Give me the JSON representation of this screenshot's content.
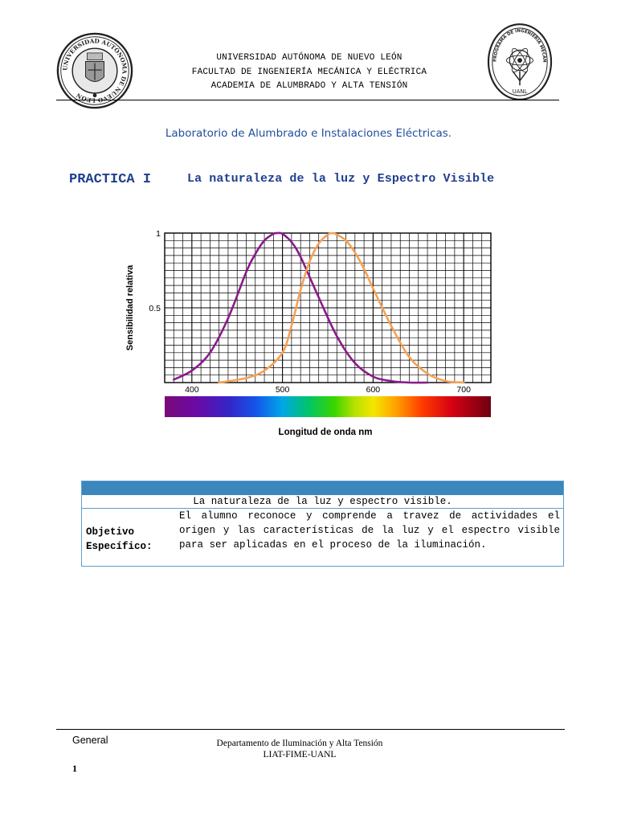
{
  "header": {
    "line1": "UNIVERSIDAD AUTÓNOMA DE NUEVO LEÓN",
    "line2": "FACULTAD DE INGENIERÍA MECÁNICA Y ELÉCTRICA",
    "line3": "ACADEMIA DE ALUMBRADO Y ALTA TENSIÓN",
    "seal_left_text": "UNIVERSIDAD AUTÓNOMA DE NUEVO LEÓN",
    "seal_right_text": "PROGRAMA DE INGENIERÍA MECÁNICA Y ELÉCTRICA",
    "seal_right_bottom": "UANL"
  },
  "lab_title": "Laboratorio de Alumbrado e Instalaciones Eléctricas.",
  "practica": {
    "label": "PRACTICA I",
    "title": "La naturaleza de la luz y Espectro Visible"
  },
  "chart_data": {
    "type": "line",
    "title": "",
    "xlabel": "Longitud de onda nm",
    "ylabel": "Sensibilidad relativa",
    "xlim": [
      370,
      730
    ],
    "ylim": [
      0,
      1
    ],
    "x_ticks": [
      400,
      500,
      600,
      700
    ],
    "y_ticks": [
      0.5,
      1
    ],
    "y_tick_labels": [
      "0.5",
      "1"
    ],
    "grid": true,
    "colorbar": "visible spectrum strip below x-axis",
    "series": [
      {
        "color": "#8b1a8b",
        "x": [
          380,
          400,
          420,
          440,
          460,
          470,
          480,
          490,
          495,
          500,
          510,
          520,
          540,
          560,
          580,
          600,
          620,
          640,
          660
        ],
        "y": [
          0.02,
          0.08,
          0.2,
          0.43,
          0.74,
          0.86,
          0.95,
          0.995,
          1.0,
          0.995,
          0.94,
          0.84,
          0.57,
          0.31,
          0.13,
          0.04,
          0.01,
          0.0,
          0.0
        ]
      },
      {
        "color": "#f7a052",
        "x": [
          430,
          460,
          480,
          500,
          510,
          520,
          530,
          540,
          550,
          555,
          560,
          570,
          580,
          590,
          600,
          620,
          640,
          660,
          680,
          700
        ],
        "y": [
          0.0,
          0.03,
          0.08,
          0.2,
          0.38,
          0.62,
          0.81,
          0.93,
          0.99,
          1.0,
          0.99,
          0.95,
          0.87,
          0.76,
          0.63,
          0.38,
          0.17,
          0.06,
          0.01,
          0.0
        ]
      }
    ]
  },
  "objective_table": {
    "subject": "La naturaleza de la luz y espectro visible.",
    "label_line1": "Objetivo",
    "label_line2": "Específico:",
    "description": "El alumno reconoce y comprende a travez de actividades el origen y las características de la luz y el espectro visible para ser aplicadas en el proceso de la iluminación."
  },
  "footer": {
    "classification": "General",
    "dept_line1": "Departamento de Iluminación y Alta Tensión",
    "dept_line2": "LIAT-FIME-UANL",
    "page_number": "1"
  },
  "colors": {
    "heading_blue": "#1f3f8f",
    "subtitle_blue": "#1f4e9c",
    "table_bar": "#3b87bd",
    "table_border": "#5c9fce"
  }
}
